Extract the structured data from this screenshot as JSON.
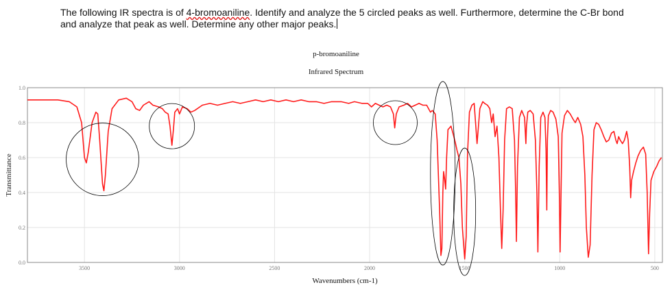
{
  "question": {
    "line1_before": "The following IR spectra is of ",
    "compound_word": "4-bromoaniline",
    "line1_after": ". Identify and analyze the 5 circled peaks as well. Furthermore, determine the C-Br bond",
    "line2": "and analyze that peak as well. Determine any other major peaks."
  },
  "chart_data": {
    "type": "line",
    "title": "p-bromoaniline",
    "subtitle": "Infrared Spectrum",
    "xlabel": "Wavenumbers (cm-1)",
    "ylabel": "Transmittance",
    "xlim": [
      3800,
      460
    ],
    "ylim": [
      0,
      1.0
    ],
    "x_reversed": true,
    "grid": true,
    "x_ticks": [
      "3500",
      "3000",
      "2500",
      "2000",
      "1500",
      "1000",
      "500"
    ],
    "y_ticks": [
      "0.0",
      "0.2",
      "0.4",
      "0.6",
      "0.8",
      "1.0"
    ],
    "series": [
      {
        "color": "#ff1a1a",
        "points": [
          [
            3800,
            0.93
          ],
          [
            3700,
            0.93
          ],
          [
            3640,
            0.93
          ],
          [
            3580,
            0.92
          ],
          [
            3540,
            0.89
          ],
          [
            3515,
            0.8
          ],
          [
            3500,
            0.6
          ],
          [
            3490,
            0.57
          ],
          [
            3480,
            0.63
          ],
          [
            3460,
            0.8
          ],
          [
            3440,
            0.86
          ],
          [
            3430,
            0.85
          ],
          [
            3420,
            0.7
          ],
          [
            3405,
            0.45
          ],
          [
            3398,
            0.41
          ],
          [
            3390,
            0.5
          ],
          [
            3375,
            0.75
          ],
          [
            3355,
            0.88
          ],
          [
            3320,
            0.93
          ],
          [
            3280,
            0.94
          ],
          [
            3250,
            0.92
          ],
          [
            3230,
            0.88
          ],
          [
            3210,
            0.87
          ],
          [
            3190,
            0.9
          ],
          [
            3160,
            0.92
          ],
          [
            3140,
            0.9
          ],
          [
            3110,
            0.89
          ],
          [
            3090,
            0.88
          ],
          [
            3075,
            0.86
          ],
          [
            3060,
            0.85
          ],
          [
            3050,
            0.78
          ],
          [
            3040,
            0.67
          ],
          [
            3032,
            0.76
          ],
          [
            3025,
            0.86
          ],
          [
            3010,
            0.88
          ],
          [
            3000,
            0.85
          ],
          [
            2985,
            0.89
          ],
          [
            2960,
            0.88
          ],
          [
            2940,
            0.86
          ],
          [
            2920,
            0.87
          ],
          [
            2880,
            0.9
          ],
          [
            2840,
            0.91
          ],
          [
            2800,
            0.9
          ],
          [
            2760,
            0.91
          ],
          [
            2720,
            0.92
          ],
          [
            2680,
            0.91
          ],
          [
            2640,
            0.92
          ],
          [
            2600,
            0.93
          ],
          [
            2560,
            0.92
          ],
          [
            2520,
            0.93
          ],
          [
            2480,
            0.92
          ],
          [
            2440,
            0.93
          ],
          [
            2400,
            0.92
          ],
          [
            2360,
            0.93
          ],
          [
            2320,
            0.92
          ],
          [
            2280,
            0.92
          ],
          [
            2240,
            0.91
          ],
          [
            2200,
            0.92
          ],
          [
            2150,
            0.92
          ],
          [
            2110,
            0.91
          ],
          [
            2080,
            0.92
          ],
          [
            2040,
            0.91
          ],
          [
            2010,
            0.91
          ],
          [
            1990,
            0.89
          ],
          [
            1970,
            0.91
          ],
          [
            1950,
            0.9
          ],
          [
            1930,
            0.89
          ],
          [
            1910,
            0.9
          ],
          [
            1890,
            0.89
          ],
          [
            1875,
            0.85
          ],
          [
            1868,
            0.77
          ],
          [
            1860,
            0.85
          ],
          [
            1845,
            0.89
          ],
          [
            1820,
            0.9
          ],
          [
            1800,
            0.91
          ],
          [
            1780,
            0.89
          ],
          [
            1760,
            0.9
          ],
          [
            1740,
            0.91
          ],
          [
            1720,
            0.9
          ],
          [
            1700,
            0.9
          ],
          [
            1690,
            0.88
          ],
          [
            1680,
            0.86
          ],
          [
            1670,
            0.87
          ],
          [
            1655,
            0.85
          ],
          [
            1645,
            0.7
          ],
          [
            1632,
            0.3
          ],
          [
            1625,
            0.04
          ],
          [
            1620,
            0.08
          ],
          [
            1615,
            0.4
          ],
          [
            1611,
            0.52
          ],
          [
            1606,
            0.48
          ],
          [
            1600,
            0.42
          ],
          [
            1595,
            0.6
          ],
          [
            1588,
            0.76
          ],
          [
            1580,
            0.77
          ],
          [
            1572,
            0.78
          ],
          [
            1562,
            0.74
          ],
          [
            1550,
            0.69
          ],
          [
            1540,
            0.64
          ],
          [
            1530,
            0.6
          ],
          [
            1520,
            0.45
          ],
          [
            1512,
            0.2
          ],
          [
            1500,
            0.02
          ],
          [
            1492,
            0.15
          ],
          [
            1485,
            0.62
          ],
          [
            1475,
            0.86
          ],
          [
            1462,
            0.9
          ],
          [
            1450,
            0.91
          ],
          [
            1435,
            0.68
          ],
          [
            1420,
            0.88
          ],
          [
            1405,
            0.92
          ],
          [
            1395,
            0.91
          ],
          [
            1380,
            0.9
          ],
          [
            1368,
            0.88
          ],
          [
            1358,
            0.8
          ],
          [
            1350,
            0.85
          ],
          [
            1340,
            0.72
          ],
          [
            1330,
            0.78
          ],
          [
            1320,
            0.6
          ],
          [
            1312,
            0.3
          ],
          [
            1305,
            0.08
          ],
          [
            1298,
            0.3
          ],
          [
            1290,
            0.7
          ],
          [
            1280,
            0.88
          ],
          [
            1265,
            0.89
          ],
          [
            1250,
            0.88
          ],
          [
            1238,
            0.7
          ],
          [
            1232,
            0.4
          ],
          [
            1228,
            0.12
          ],
          [
            1222,
            0.55
          ],
          [
            1212,
            0.83
          ],
          [
            1200,
            0.87
          ],
          [
            1185,
            0.83
          ],
          [
            1178,
            0.68
          ],
          [
            1175,
            0.78
          ],
          [
            1168,
            0.86
          ],
          [
            1155,
            0.87
          ],
          [
            1140,
            0.85
          ],
          [
            1128,
            0.7
          ],
          [
            1120,
            0.4
          ],
          [
            1115,
            0.06
          ],
          [
            1108,
            0.55
          ],
          [
            1100,
            0.83
          ],
          [
            1088,
            0.86
          ],
          [
            1078,
            0.83
          ],
          [
            1072,
            0.65
          ],
          [
            1068,
            0.3
          ],
          [
            1065,
            0.7
          ],
          [
            1060,
            0.84
          ],
          [
            1048,
            0.87
          ],
          [
            1035,
            0.86
          ],
          [
            1020,
            0.82
          ],
          [
            1008,
            0.72
          ],
          [
            1002,
            0.4
          ],
          [
            998,
            0.06
          ],
          [
            993,
            0.4
          ],
          [
            988,
            0.74
          ],
          [
            975,
            0.84
          ],
          [
            960,
            0.87
          ],
          [
            945,
            0.85
          ],
          [
            930,
            0.82
          ],
          [
            918,
            0.8
          ],
          [
            905,
            0.83
          ],
          [
            890,
            0.79
          ],
          [
            878,
            0.72
          ],
          [
            868,
            0.5
          ],
          [
            860,
            0.2
          ],
          [
            850,
            0.03
          ],
          [
            840,
            0.1
          ],
          [
            830,
            0.5
          ],
          [
            820,
            0.76
          ],
          [
            808,
            0.8
          ],
          [
            795,
            0.79
          ],
          [
            782,
            0.76
          ],
          [
            768,
            0.72
          ],
          [
            755,
            0.69
          ],
          [
            742,
            0.7
          ],
          [
            728,
            0.74
          ],
          [
            715,
            0.75
          ],
          [
            705,
            0.7
          ],
          [
            698,
            0.68
          ],
          [
            690,
            0.72
          ],
          [
            682,
            0.7
          ],
          [
            670,
            0.68
          ],
          [
            660,
            0.7
          ],
          [
            648,
            0.75
          ],
          [
            640,
            0.7
          ],
          [
            632,
            0.55
          ],
          [
            627,
            0.37
          ],
          [
            622,
            0.47
          ],
          [
            612,
            0.52
          ],
          [
            600,
            0.57
          ],
          [
            588,
            0.61
          ],
          [
            575,
            0.64
          ],
          [
            560,
            0.66
          ],
          [
            548,
            0.62
          ],
          [
            540,
            0.4
          ],
          [
            533,
            0.05
          ],
          [
            527,
            0.28
          ],
          [
            520,
            0.47
          ],
          [
            505,
            0.52
          ],
          [
            490,
            0.55
          ],
          [
            478,
            0.58
          ],
          [
            465,
            0.6
          ]
        ]
      }
    ]
  },
  "annotations": [
    {
      "label": "circled peak 1",
      "x": 3405,
      "y": 0.59
    },
    {
      "label": "circled peak 2",
      "x": 3040,
      "y": 0.78
    },
    {
      "label": "circled peak 3",
      "x": 1865,
      "y": 0.8
    },
    {
      "label": "circled peak 4",
      "x": 1615,
      "y": 0.51
    },
    {
      "label": "circled peak 5",
      "x": 1500,
      "y": 0.29
    }
  ],
  "colors": {
    "spectrum": "#ff1a1a",
    "grid": "#e3e3e3",
    "axis": "#888888",
    "annotation": "#000000"
  }
}
